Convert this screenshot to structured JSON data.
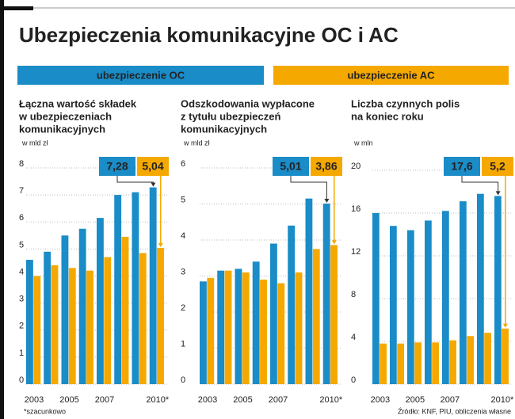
{
  "title": "Ubezpieczenia komunikacyjne OC i AC",
  "legend": [
    {
      "name": "ubezpieczenie OC",
      "color": "#1a8cc7"
    },
    {
      "name": "ubezpieczenie AC",
      "color": "#f5a800"
    }
  ],
  "chart_data": [
    {
      "type": "bar",
      "title": [
        "Łączna wartość składek",
        "w ubezpieczeniach",
        "komunikacyjnych"
      ],
      "y_label": "w mld zł",
      "categories": [
        "2003",
        null,
        "2005",
        null,
        "2007",
        null,
        null,
        "2010*"
      ],
      "ylim": [
        0,
        8
      ],
      "yticks": [
        0,
        1,
        2,
        3,
        4,
        5,
        6,
        7,
        8
      ],
      "grid": true,
      "series": [
        {
          "values": [
            4.6,
            4.9,
            5.5,
            5.75,
            6.15,
            7.0,
            7.1,
            7.28
          ],
          "value_labels": [
            null,
            null,
            null,
            null,
            null,
            null,
            null,
            "7,28"
          ]
        },
        {
          "values": [
            4.0,
            4.4,
            4.3,
            4.2,
            4.7,
            5.45,
            4.85,
            5.04
          ],
          "value_labels": [
            null,
            null,
            null,
            null,
            null,
            null,
            null,
            "5,04"
          ]
        }
      ]
    },
    {
      "type": "bar",
      "title": [
        "Odszkodowania wypłacone",
        "z tytułu ubezpieczeń",
        "komunikacyjnych"
      ],
      "y_label": "w mld zł",
      "categories": [
        "2003",
        null,
        "2005",
        null,
        "2007",
        null,
        null,
        "2010*"
      ],
      "ylim": [
        0,
        6
      ],
      "yticks": [
        0,
        1,
        2,
        3,
        4,
        5,
        6
      ],
      "grid": true,
      "series": [
        {
          "values": [
            2.85,
            3.15,
            3.2,
            3.4,
            3.9,
            4.4,
            5.15,
            5.01
          ],
          "value_labels": [
            null,
            null,
            null,
            null,
            null,
            null,
            null,
            "5,01"
          ]
        },
        {
          "values": [
            2.95,
            3.15,
            3.1,
            2.9,
            2.8,
            3.1,
            3.75,
            3.86
          ],
          "value_labels": [
            null,
            null,
            null,
            null,
            null,
            null,
            null,
            "3,86"
          ]
        }
      ]
    },
    {
      "type": "bar",
      "title": [
        "Liczba czynnych polis",
        "na koniec roku"
      ],
      "y_label": "w mln",
      "categories": [
        "2003",
        null,
        "2005",
        null,
        "2007",
        null,
        null,
        "2010*"
      ],
      "ylim": [
        0,
        20
      ],
      "yticks": [
        0,
        4,
        8,
        12,
        16,
        20
      ],
      "grid": true,
      "series": [
        {
          "values": [
            16.0,
            14.8,
            14.4,
            15.3,
            16.2,
            17.1,
            17.8,
            17.6
          ],
          "value_labels": [
            null,
            null,
            null,
            null,
            null,
            null,
            null,
            "17,6"
          ]
        },
        {
          "values": [
            3.8,
            3.8,
            3.9,
            3.9,
            4.1,
            4.5,
            4.8,
            5.2
          ],
          "value_labels": [
            null,
            null,
            null,
            null,
            null,
            null,
            null,
            "5,2"
          ]
        }
      ]
    }
  ],
  "footnote": "*szacunkowo",
  "source": "Źródło: KNF, PIU, obliczenia własne"
}
